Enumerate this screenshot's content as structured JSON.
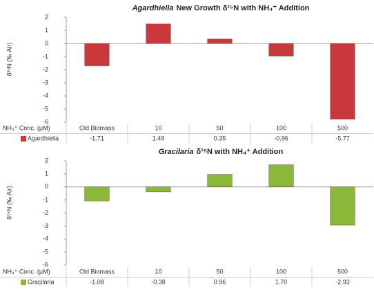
{
  "chart_data": [
    {
      "type": "bar",
      "title_species": "Agardhiella",
      "title": "New Growth δ¹⁵N with NH₄⁺ Addition",
      "y_label": "δ¹⁵N (‰ Air)",
      "table_header": "NH₄⁺ Conc. (μM)",
      "categories": [
        "Old Biomass",
        "10",
        "50",
        "100",
        "500"
      ],
      "series": [
        {
          "name": "Agardhiella",
          "color": "#c9383a",
          "values": [
            -1.71,
            1.49,
            0.35,
            -0.96,
            -5.77
          ],
          "value_labels": [
            "-1.71",
            "1.49",
            "0.35",
            "-0.96",
            "-5.77"
          ]
        }
      ],
      "ylim": [
        -6,
        2
      ],
      "yticks": [
        -6,
        -5,
        -4,
        -3,
        -2,
        -1,
        0,
        1,
        2
      ]
    },
    {
      "type": "bar",
      "title_species": "Gracilaria",
      "title": "δ¹⁵N with NH₄⁺ Addition",
      "y_label": "δ¹⁵N (‰ Air)",
      "table_header": "NH₄⁺ Conc. (μM)",
      "categories": [
        "Old Biomass",
        "10",
        "50",
        "100",
        "500"
      ],
      "series": [
        {
          "name": "Gracilaria",
          "color": "#8cb83a",
          "values": [
            -1.08,
            -0.38,
            0.96,
            1.7,
            -2.93
          ],
          "value_labels": [
            "-1.08",
            "-0.38",
            "0.96",
            "1.70",
            "-2.93"
          ]
        }
      ],
      "ylim": [
        -6,
        2
      ],
      "yticks": [
        -6,
        -5,
        -4,
        -3,
        -2,
        -1,
        0,
        1,
        2
      ]
    }
  ]
}
